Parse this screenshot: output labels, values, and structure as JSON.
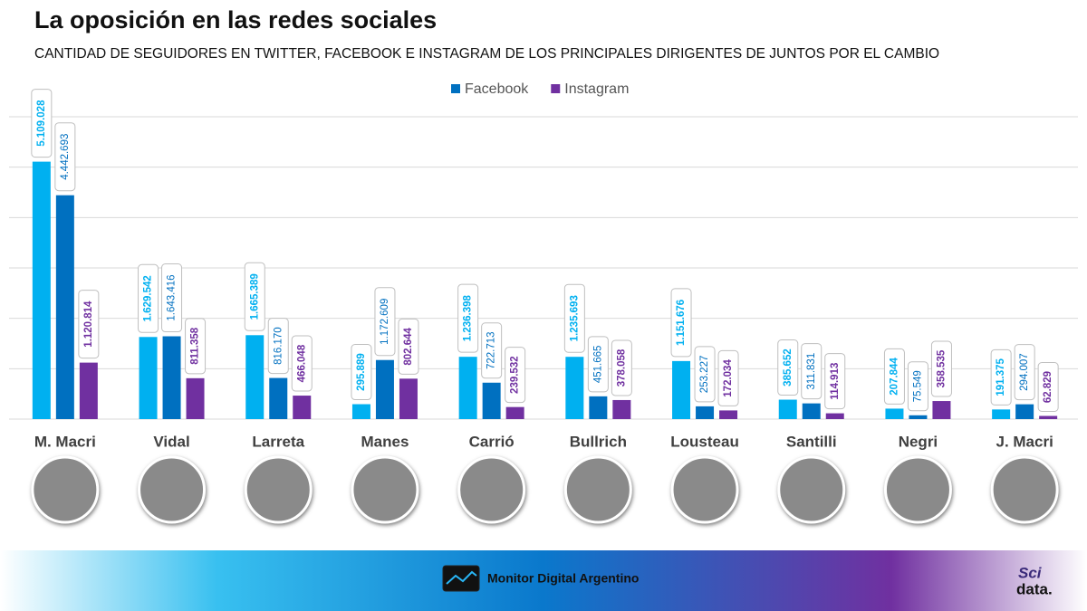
{
  "chart_data": {
    "type": "bar",
    "title": "La oposición en las redes sociales",
    "subtitle": "CANTIDAD DE SEGUIDORES EN TWITTER, FACEBOOK E INSTAGRAM DE LOS PRINCIPALES DIRIGENTES DE JUNTOS POR EL CAMBIO",
    "categories": [
      "M. Macri",
      "Vidal",
      "Larreta",
      "Manes",
      "Carrió",
      "Bullrich",
      "Lousteau",
      "Santilli",
      "Negri",
      "J. Macri"
    ],
    "series": [
      {
        "color": "#00b0f0",
        "values": [
          5109028,
          1629542,
          1665389,
          295889,
          1236398,
          1235693,
          1151676,
          385652,
          207844,
          191375
        ],
        "value_labels": [
          "5.109.028",
          "1.629.542",
          "1.665.389",
          "295.889",
          "1.236.398",
          "1.235.693",
          "1.151.676",
          "385.652",
          "207.844",
          "191.375"
        ]
      },
      {
        "name": "Facebook",
        "color": "#0070c0",
        "values": [
          4442693,
          1643416,
          816170,
          1172609,
          722713,
          451665,
          253227,
          311831,
          75549,
          294007
        ],
        "value_labels": [
          "4.442.693",
          "1.643.416",
          "816.170",
          "1.172.609",
          "722.713",
          "451.665",
          "253.227",
          "311.831",
          "75.549",
          "294.007"
        ]
      },
      {
        "name": "Instagram",
        "color": "#7030a0",
        "values": [
          1120814,
          811358,
          466048,
          802644,
          239532,
          378058,
          172034,
          114913,
          358535,
          62829
        ],
        "value_labels": [
          "1.120.814",
          "811.358",
          "466.048",
          "802.644",
          "239.532",
          "378.058",
          "172.034",
          "114.913",
          "358.535",
          "62.829"
        ]
      }
    ],
    "ylim": [
      0,
      6000000
    ],
    "yticks": [
      0,
      1000000,
      2000000,
      3000000,
      4000000,
      5000000,
      6000000
    ],
    "grid": true
  },
  "footer": {
    "brand": "Monitor Digital Argentino",
    "logo_top": "Sci",
    "logo_bottom": "data."
  }
}
